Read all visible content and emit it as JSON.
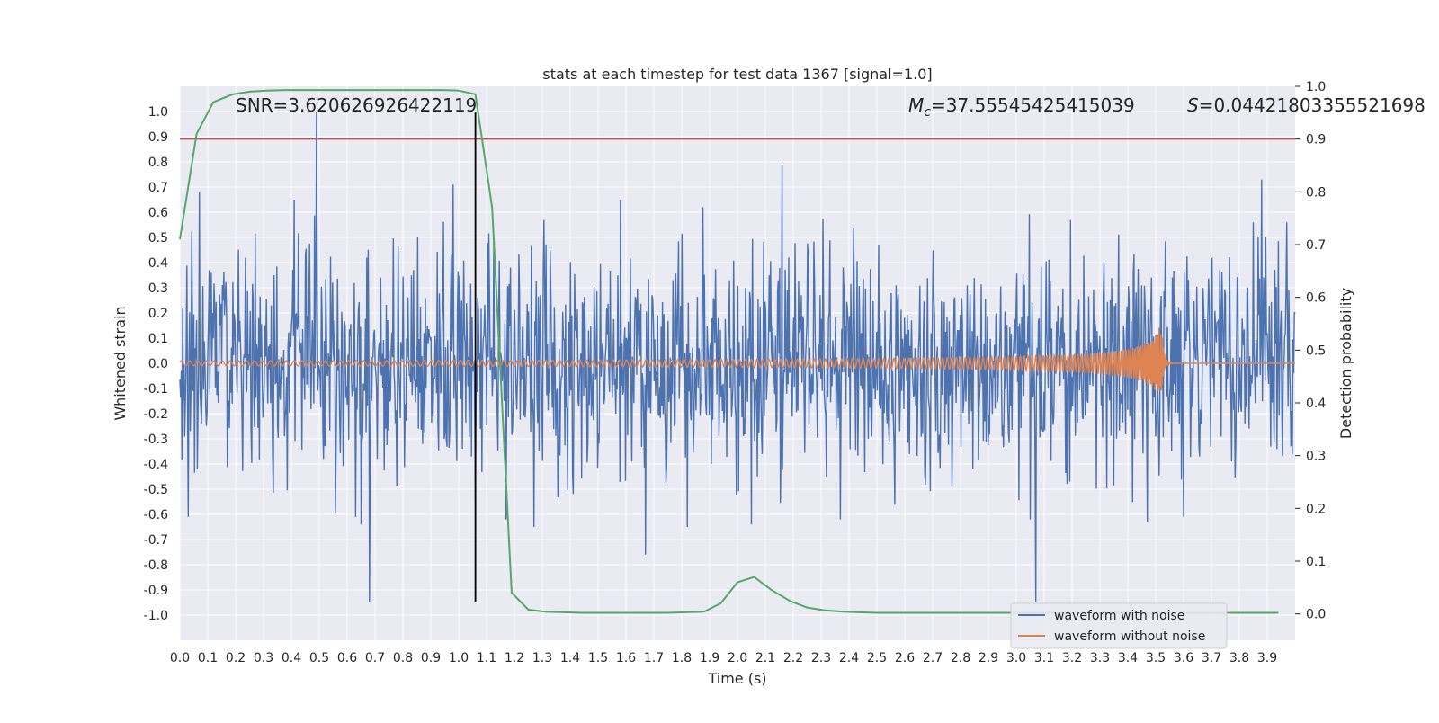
{
  "chart_data": {
    "type": "line",
    "title": "stats at each timestep for test data 1367 [signal=1.0]",
    "xlabel": "Time (s)",
    "ylabel": "Whitened strain",
    "y2label": "Detection probability",
    "xlim": [
      0.0,
      4.0
    ],
    "ylim": [
      -1.1,
      1.1
    ],
    "y2lim": [
      -0.05,
      1.0
    ],
    "grid": true,
    "legend_placement": "lower-right",
    "x_ticks": [
      "0.0",
      "0.1",
      "0.2",
      "0.3",
      "0.4",
      "0.5",
      "0.6",
      "0.7",
      "0.8",
      "0.9",
      "1.0",
      "1.1",
      "1.2",
      "1.3",
      "1.4",
      "1.5",
      "1.6",
      "1.7",
      "1.8",
      "1.9",
      "2.0",
      "2.1",
      "2.2",
      "2.3",
      "2.4",
      "2.5",
      "2.6",
      "2.7",
      "2.8",
      "2.9",
      "3.0",
      "3.1",
      "3.2",
      "3.3",
      "3.4",
      "3.5",
      "3.6",
      "3.7",
      "3.8",
      "3.9"
    ],
    "y_ticks": [
      "-1.0",
      "-0.9",
      "-0.8",
      "-0.7",
      "-0.6",
      "-0.5",
      "-0.4",
      "-0.3",
      "-0.2",
      "-0.1",
      "0.0",
      "0.1",
      "0.2",
      "0.3",
      "0.4",
      "0.5",
      "0.6",
      "0.7",
      "0.8",
      "0.9",
      "1.0"
    ],
    "y2_ticks": [
      "0.0",
      "0.1",
      "0.2",
      "0.3",
      "0.4",
      "0.5",
      "0.6",
      "0.7",
      "0.8",
      "0.9",
      "1.0"
    ],
    "annotations": {
      "snr": "SNR=3.620626926422119",
      "mc": "M_c=37.55545425415039",
      "mc_base": "M",
      "mc_sub": "c",
      "mc_rest": "=37.55545425415039",
      "s_var": "S",
      "s_rest": "=0.04421803355521698"
    },
    "colors": {
      "noisy": "#4c72b0",
      "clean": "#dd8452",
      "probability": "#55a868",
      "threshold": "#c44e52",
      "marker": "#000000",
      "plot_bg": "#eaeaf2",
      "grid": "#ffffff"
    },
    "threshold_probability": 0.9,
    "marker_time": 1.06,
    "series": [
      {
        "name": "waveform with noise",
        "color": "#4c72b0",
        "description_axis": "left",
        "peaks": [
          {
            "x": 0.49,
            "y": 1.0
          },
          {
            "x": 0.68,
            "y": -0.95
          },
          {
            "x": 0.07,
            "y": 0.68
          },
          {
            "x": 0.03,
            "y": -0.61
          },
          {
            "x": 0.41,
            "y": 0.65
          },
          {
            "x": 0.65,
            "y": -0.64
          },
          {
            "x": 0.98,
            "y": 0.71
          },
          {
            "x": 1.06,
            "y": -0.55
          },
          {
            "x": 1.17,
            "y": -0.62
          },
          {
            "x": 1.27,
            "y": -0.65
          },
          {
            "x": 1.58,
            "y": 0.65
          },
          {
            "x": 1.67,
            "y": -0.76
          },
          {
            "x": 1.82,
            "y": -0.65
          },
          {
            "x": 2.05,
            "y": -0.64
          },
          {
            "x": 2.16,
            "y": 0.79
          },
          {
            "x": 3.05,
            "y": -0.62
          },
          {
            "x": 3.07,
            "y": -0.95
          },
          {
            "x": 3.47,
            "y": -0.63
          },
          {
            "x": 3.6,
            "y": -0.61
          },
          {
            "x": 3.88,
            "y": 0.73
          },
          {
            "x": 3.97,
            "y": 0.56
          }
        ],
        "noise_amplitude": 0.3
      },
      {
        "name": "waveform without noise",
        "color": "#dd8452",
        "description_axis": "left",
        "type": "chirp",
        "merger_time": 3.52,
        "peak_amplitude": 0.17,
        "start_amplitude": 0.003
      },
      {
        "name": "detection probability",
        "color": "#55a868",
        "axis": "right",
        "x": [
          0.0,
          0.06,
          0.12,
          0.19,
          0.25,
          0.31,
          0.38,
          0.44,
          0.5,
          0.56,
          0.62,
          0.69,
          0.75,
          0.81,
          0.88,
          0.94,
          1.0,
          1.06,
          1.12,
          1.19,
          1.25,
          1.31,
          1.38,
          1.44,
          1.5,
          1.56,
          1.62,
          1.69,
          1.75,
          1.81,
          1.88,
          1.94,
          2.0,
          2.06,
          2.12,
          2.19,
          2.25,
          2.31,
          2.38,
          2.44,
          2.5,
          3.0,
          3.5,
          3.94
        ],
        "values": [
          0.71,
          0.91,
          0.97,
          0.985,
          0.99,
          0.992,
          0.993,
          0.993,
          0.993,
          0.993,
          0.993,
          0.993,
          0.993,
          0.993,
          0.993,
          0.993,
          0.992,
          0.985,
          0.77,
          0.04,
          0.008,
          0.004,
          0.003,
          0.002,
          0.002,
          0.002,
          0.002,
          0.002,
          0.002,
          0.003,
          0.004,
          0.02,
          0.06,
          0.07,
          0.046,
          0.024,
          0.012,
          0.007,
          0.004,
          0.003,
          0.002,
          0.002,
          0.002,
          0.002
        ]
      }
    ],
    "legend": [
      "waveform with noise",
      "waveform without noise"
    ]
  }
}
